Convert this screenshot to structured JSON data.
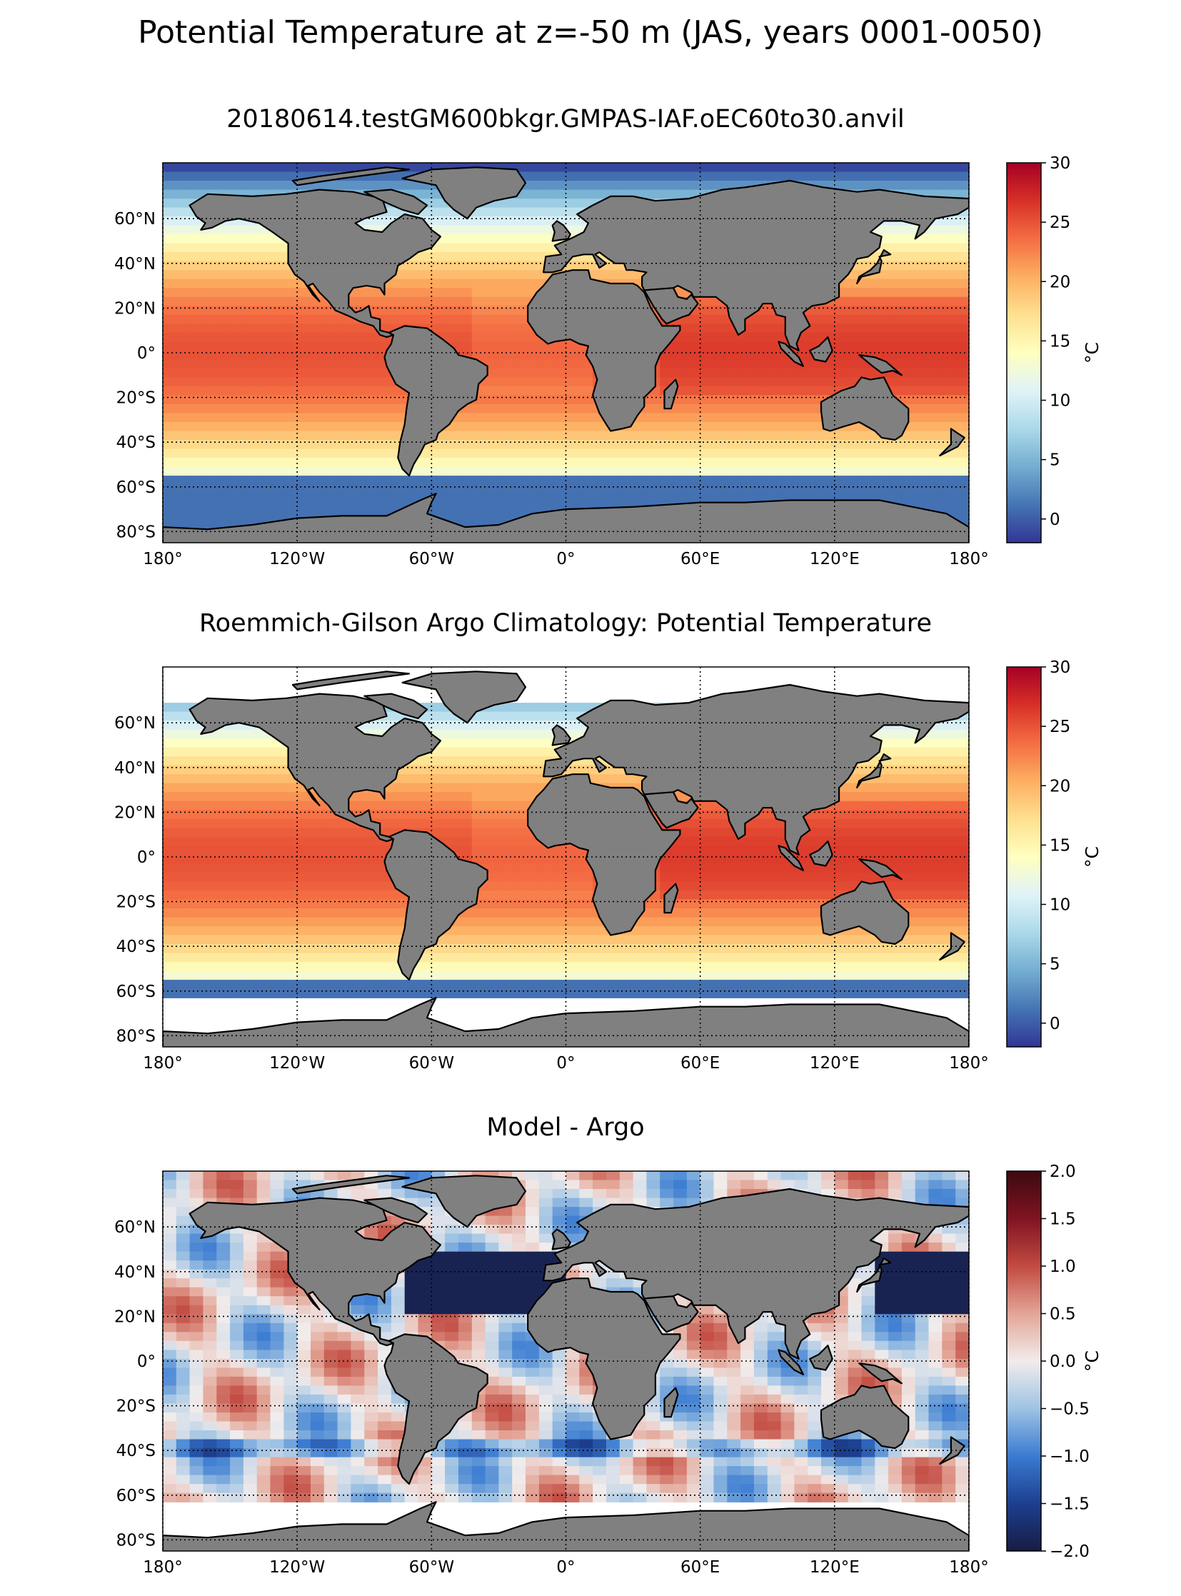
{
  "figure_title": "Potential Temperature at z=-50 m (JAS, years 0001-0050)",
  "colors": {
    "land": "#808080",
    "coast": "#000000",
    "missing": "#ffffff",
    "rdylbu_r": [
      "#313695",
      "#4575b4",
      "#74add1",
      "#abd9e9",
      "#e0f3f8",
      "#ffffbf",
      "#fee090",
      "#fdae61",
      "#f46d43",
      "#d73027",
      "#a50026"
    ],
    "balance": [
      "#181c43",
      "#1d3f8f",
      "#3a7bd1",
      "#9fc3e3",
      "#f1ecec",
      "#e3a596",
      "#c24a41",
      "#801422",
      "#3c0911"
    ]
  },
  "chart_data": [
    {
      "type": "heatmap",
      "title": "20180614.testGM600bkgr.GMPAS-IAF.oEC60to30.anvil",
      "xlim": [
        -180,
        180
      ],
      "ylim": [
        -85,
        85
      ],
      "x_tick_values": [
        -180,
        -120,
        -60,
        0,
        60,
        120,
        180
      ],
      "x_tick_labels": [
        "180°",
        "120°W",
        "60°W",
        "0°",
        "60°E",
        "120°E",
        "180°"
      ],
      "y_tick_values": [
        60,
        40,
        20,
        0,
        -20,
        -40,
        -60,
        -80
      ],
      "y_tick_labels": [
        "60°N",
        "40°N",
        "20°N",
        "0°",
        "20°S",
        "40°S",
        "60°S",
        "80°S"
      ],
      "grid": true,
      "colormap": "rdylbu_r",
      "colorbar": {
        "vmin": -2,
        "vmax": 30,
        "ticks": [
          0,
          5,
          10,
          15,
          20,
          25,
          30
        ],
        "tick_labels": [
          "0",
          "5",
          "10",
          "15",
          "20",
          "25",
          "30"
        ],
        "label": "°C"
      }
    },
    {
      "type": "heatmap",
      "title": "Roemmich-Gilson Argo Climatology: Potential Temperature",
      "xlim": [
        -180,
        180
      ],
      "ylim": [
        -85,
        85
      ],
      "x_tick_values": [
        -180,
        -120,
        -60,
        0,
        60,
        120,
        180
      ],
      "x_tick_labels": [
        "180°",
        "120°W",
        "60°W",
        "0°",
        "60°E",
        "120°E",
        "180°"
      ],
      "y_tick_values": [
        60,
        40,
        20,
        0,
        -20,
        -40,
        -60,
        -80
      ],
      "y_tick_labels": [
        "60°N",
        "40°N",
        "20°N",
        "0°",
        "20°S",
        "40°S",
        "60°S",
        "80°S"
      ],
      "grid": true,
      "colormap": "rdylbu_r",
      "colorbar": {
        "vmin": -2,
        "vmax": 30,
        "ticks": [
          0,
          5,
          10,
          15,
          20,
          25,
          30
        ],
        "tick_labels": [
          "0",
          "5",
          "10",
          "15",
          "20",
          "25",
          "30"
        ],
        "label": "°C"
      }
    },
    {
      "type": "heatmap",
      "title": "Model - Argo",
      "xlim": [
        -180,
        180
      ],
      "ylim": [
        -85,
        85
      ],
      "x_tick_values": [
        -180,
        -120,
        -60,
        0,
        60,
        120,
        180
      ],
      "x_tick_labels": [
        "180°",
        "120°W",
        "60°W",
        "0°",
        "60°E",
        "120°E",
        "180°"
      ],
      "y_tick_values": [
        60,
        40,
        20,
        0,
        -20,
        -40,
        -60,
        -80
      ],
      "y_tick_labels": [
        "60°N",
        "40°N",
        "20°N",
        "0°",
        "20°S",
        "40°S",
        "60°S",
        "80°S"
      ],
      "grid": true,
      "colormap": "balance",
      "colorbar": {
        "vmin": -2,
        "vmax": 2,
        "ticks": [
          2.0,
          1.5,
          1.0,
          0.5,
          0.0,
          -0.5,
          -1.0,
          -1.5,
          -2.0
        ],
        "tick_labels": [
          "2.0",
          "1.5",
          "1.0",
          "0.5",
          "0.0",
          "−0.5",
          "−1.0",
          "−1.5",
          "−2.0"
        ],
        "label": "°C"
      }
    }
  ]
}
